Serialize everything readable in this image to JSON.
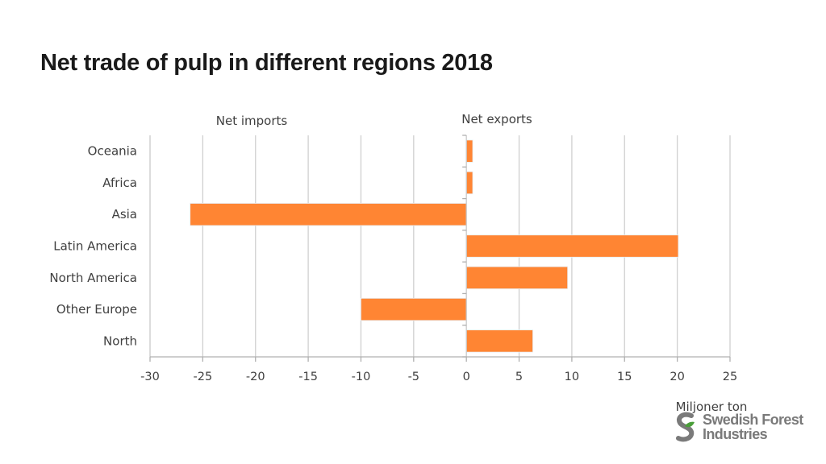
{
  "slide": {
    "title": "Net trade of pulp in different regions 2018"
  },
  "chart_data": {
    "type": "bar",
    "orientation": "horizontal",
    "categories": [
      "Oceania",
      "Africa",
      "Asia",
      "Latin America",
      "North America",
      "Other Europe",
      "North"
    ],
    "values": [
      0.6,
      0.6,
      -26.2,
      20.1,
      9.6,
      -10.0,
      6.3
    ],
    "xlim": [
      -30,
      25
    ],
    "xticks": [
      -30,
      -25,
      -20,
      -15,
      -10,
      -5,
      0,
      5,
      10,
      15,
      20,
      25
    ],
    "negative_label": "Net imports",
    "positive_label": "Net exports",
    "unit_label": "Miljoner ton",
    "bar_color": "#ff8533",
    "grid": true
  },
  "logo": {
    "line1": "Swedish Forest",
    "line2": "Industries",
    "icon": "s-leaf-logo-icon",
    "color": "#7a7a7a",
    "accent": "#4a9e3a"
  }
}
